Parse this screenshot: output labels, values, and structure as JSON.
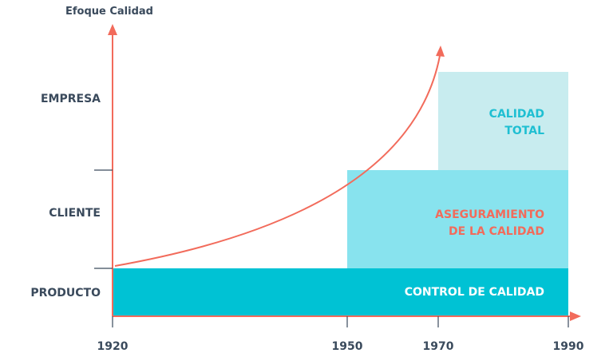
{
  "title": "Efoque Calidad",
  "y_levels": [
    "EMPRESA",
    "CLIENTE",
    "PRODUCTO"
  ],
  "x_ticks": [
    "1920",
    "1950",
    "1970",
    "1990"
  ],
  "blocks": {
    "control": {
      "label": "CONTROL DE CALIDAD",
      "color": "#00c2d4",
      "text_color": "#ffffff"
    },
    "aseguramiento": {
      "line1": "ASEGURAMIENTO",
      "line2": "DE LA CALIDAD",
      "color": "#88e3ee",
      "text_color": "#f26b5b"
    },
    "total": {
      "line1": "CALIDAD",
      "line2": "TOTAL",
      "color": "#c8ecef",
      "text_color": "#1fbfd2"
    }
  },
  "colors": {
    "axis": "#f26b5b",
    "curve": "#f26b5b",
    "text": "#3a4a5c"
  }
}
